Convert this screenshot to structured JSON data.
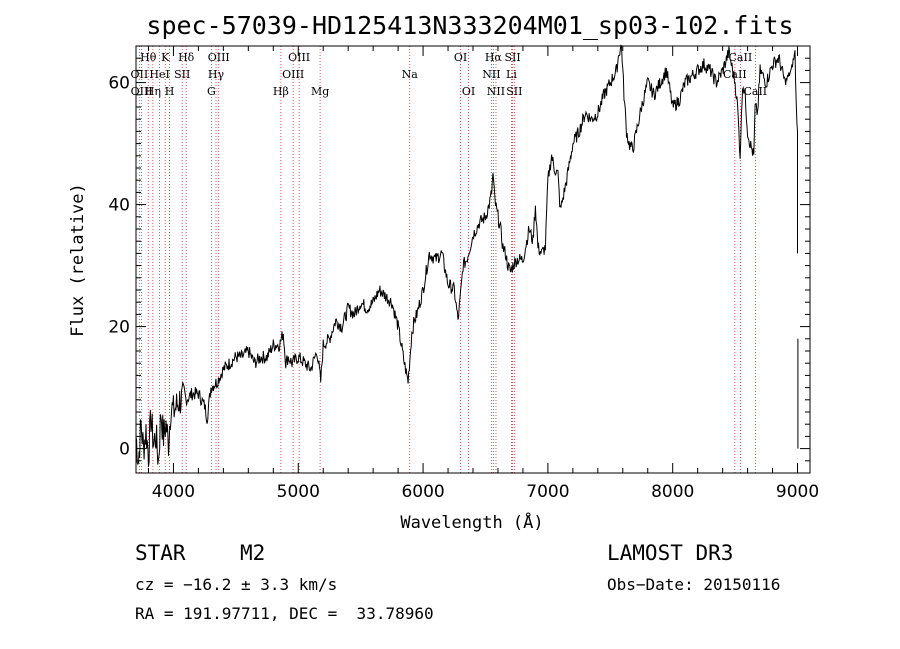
{
  "chart_data": {
    "type": "line",
    "title": "spec-57039-HD125413N333204M01_sp03-102.fits",
    "xlabel": "Wavelength (Å)",
    "ylabel": "Flux (relative)",
    "xlim": [
      3700,
      9100
    ],
    "ylim": [
      -4,
      66
    ],
    "xticks": [
      4000,
      5000,
      6000,
      7000,
      8000,
      9000
    ],
    "yticks": [
      0,
      20,
      40,
      60
    ],
    "grid": false,
    "series": [
      {
        "name": "spectrum",
        "x": [
          3700,
          3720,
          3740,
          3760,
          3780,
          3800,
          3820,
          3840,
          3860,
          3880,
          3900,
          3920,
          3940,
          3960,
          3980,
          4000,
          4050,
          4100,
          4150,
          4200,
          4250,
          4270,
          4300,
          4350,
          4400,
          4450,
          4500,
          4550,
          4600,
          4650,
          4700,
          4750,
          4800,
          4850,
          4880,
          4900,
          4920,
          4950,
          5000,
          5050,
          5100,
          5150,
          5180,
          5200,
          5250,
          5300,
          5350,
          5400,
          5450,
          5500,
          5550,
          5600,
          5650,
          5700,
          5750,
          5800,
          5850,
          5880,
          5895,
          5910,
          5930,
          5950,
          6000,
          6050,
          6100,
          6150,
          6200,
          6250,
          6280,
          6300,
          6320,
          6350,
          6400,
          6450,
          6500,
          6530,
          6550,
          6560,
          6570,
          6580,
          6600,
          6620,
          6640,
          6660,
          6680,
          6700,
          6720,
          6750,
          6800,
          6850,
          6880,
          6900,
          6920,
          6950,
          6980,
          7000,
          7030,
          7050,
          7080,
          7100,
          7150,
          7200,
          7250,
          7300,
          7350,
          7400,
          7450,
          7500,
          7550,
          7570,
          7590,
          7610,
          7630,
          7650,
          7680,
          7700,
          7750,
          7800,
          7850,
          7900,
          7950,
          8000,
          8050,
          8100,
          8150,
          8200,
          8250,
          8300,
          8350,
          8400,
          8450,
          8500,
          8520,
          8540,
          8560,
          8580,
          8600,
          8620,
          8650,
          8660,
          8680,
          8700,
          8750,
          8800,
          8850,
          8900,
          8950,
          8980,
          8990,
          9000
        ],
        "values": [
          2,
          -2,
          4,
          0,
          3,
          -1,
          5,
          1,
          2,
          -2,
          6,
          2,
          4,
          1,
          7,
          6,
          8,
          8,
          9,
          9,
          7,
          5,
          10,
          11,
          13,
          14,
          15,
          15,
          16,
          14,
          15,
          15,
          17,
          17,
          19,
          14,
          15,
          14,
          15,
          14,
          13,
          16,
          11,
          17,
          18,
          21,
          20,
          23,
          22,
          24,
          23,
          24,
          26,
          25,
          24,
          20,
          14,
          11,
          15,
          19,
          21,
          22,
          26,
          32,
          31,
          32,
          27,
          26,
          21,
          25,
          30,
          31,
          35,
          37,
          38,
          40,
          42,
          45,
          42,
          40,
          38,
          36,
          33,
          32,
          30,
          29,
          30,
          31,
          31,
          36,
          34,
          40,
          33,
          32,
          33,
          44,
          48,
          46,
          45,
          39,
          44,
          50,
          52,
          55,
          54,
          55,
          58,
          60,
          62,
          65,
          66,
          58,
          52,
          50,
          49,
          51,
          56,
          60,
          58,
          60,
          62,
          56,
          57,
          60,
          61,
          62,
          63,
          62,
          60,
          62,
          65,
          60,
          56,
          48,
          60,
          58,
          52,
          50,
          48,
          56,
          55,
          62,
          60,
          63,
          64,
          60,
          62,
          65,
          56,
          52
        ]
      }
    ],
    "line_markers": [
      {
        "label": "Hθ",
        "x": 3798,
        "row": 1
      },
      {
        "label": "OII",
        "x": 3727,
        "row": 2
      },
      {
        "label": "OIII",
        "x": 3745,
        "row": 3
      },
      {
        "label": "Hη",
        "x": 3835,
        "row": 3
      },
      {
        "label": "HeI",
        "x": 3889,
        "row": 2
      },
      {
        "label": "K",
        "x": 3934,
        "row": 1
      },
      {
        "label": "SII",
        "x": 4070,
        "row": 2
      },
      {
        "label": "H",
        "x": 3969,
        "row": 3
      },
      {
        "label": "Hδ",
        "x": 4102,
        "row": 1
      },
      {
        "label": "OIII",
        "x": 4363,
        "row": 1
      },
      {
        "label": "Hγ",
        "x": 4341,
        "row": 2
      },
      {
        "label": "G",
        "x": 4304,
        "row": 3
      },
      {
        "label": "OIII",
        "x": 5007,
        "row": 1
      },
      {
        "label": "OIII",
        "x": 4959,
        "row": 2
      },
      {
        "label": "Hβ",
        "x": 4861,
        "row": 3
      },
      {
        "label": "Mg",
        "x": 5175,
        "row": 3
      },
      {
        "label": "Na",
        "x": 5893,
        "row": 2
      },
      {
        "label": "OI",
        "x": 6300,
        "row": 1
      },
      {
        "label": "OI",
        "x": 6364,
        "row": 3
      },
      {
        "label": "Hα",
        "x": 6563,
        "row": 1
      },
      {
        "label": "SII",
        "x": 6717,
        "row": 1
      },
      {
        "label": "NII",
        "x": 6548,
        "row": 2
      },
      {
        "label": "Li",
        "x": 6708,
        "row": 2
      },
      {
        "label": "NII",
        "x": 6584,
        "row": 3
      },
      {
        "label": "SII",
        "x": 6731,
        "row": 3
      },
      {
        "label": "CaII",
        "x": 8542,
        "row": 1
      },
      {
        "label": "CaII",
        "x": 8498,
        "row": 2
      },
      {
        "label": "CaII",
        "x": 8662,
        "row": 3
      }
    ]
  },
  "info": {
    "object_class": "STAR",
    "subclass": "M2",
    "survey": "LAMOST DR3",
    "cz": "cz = −16.2 ± 3.3 km/s",
    "obs_date": "Obs−Date: 20150116",
    "coords": "RA = 191.97711, DEC =  33.78960"
  },
  "colors": {
    "marker_line": "#cc3333",
    "spectrum": "#000000"
  }
}
